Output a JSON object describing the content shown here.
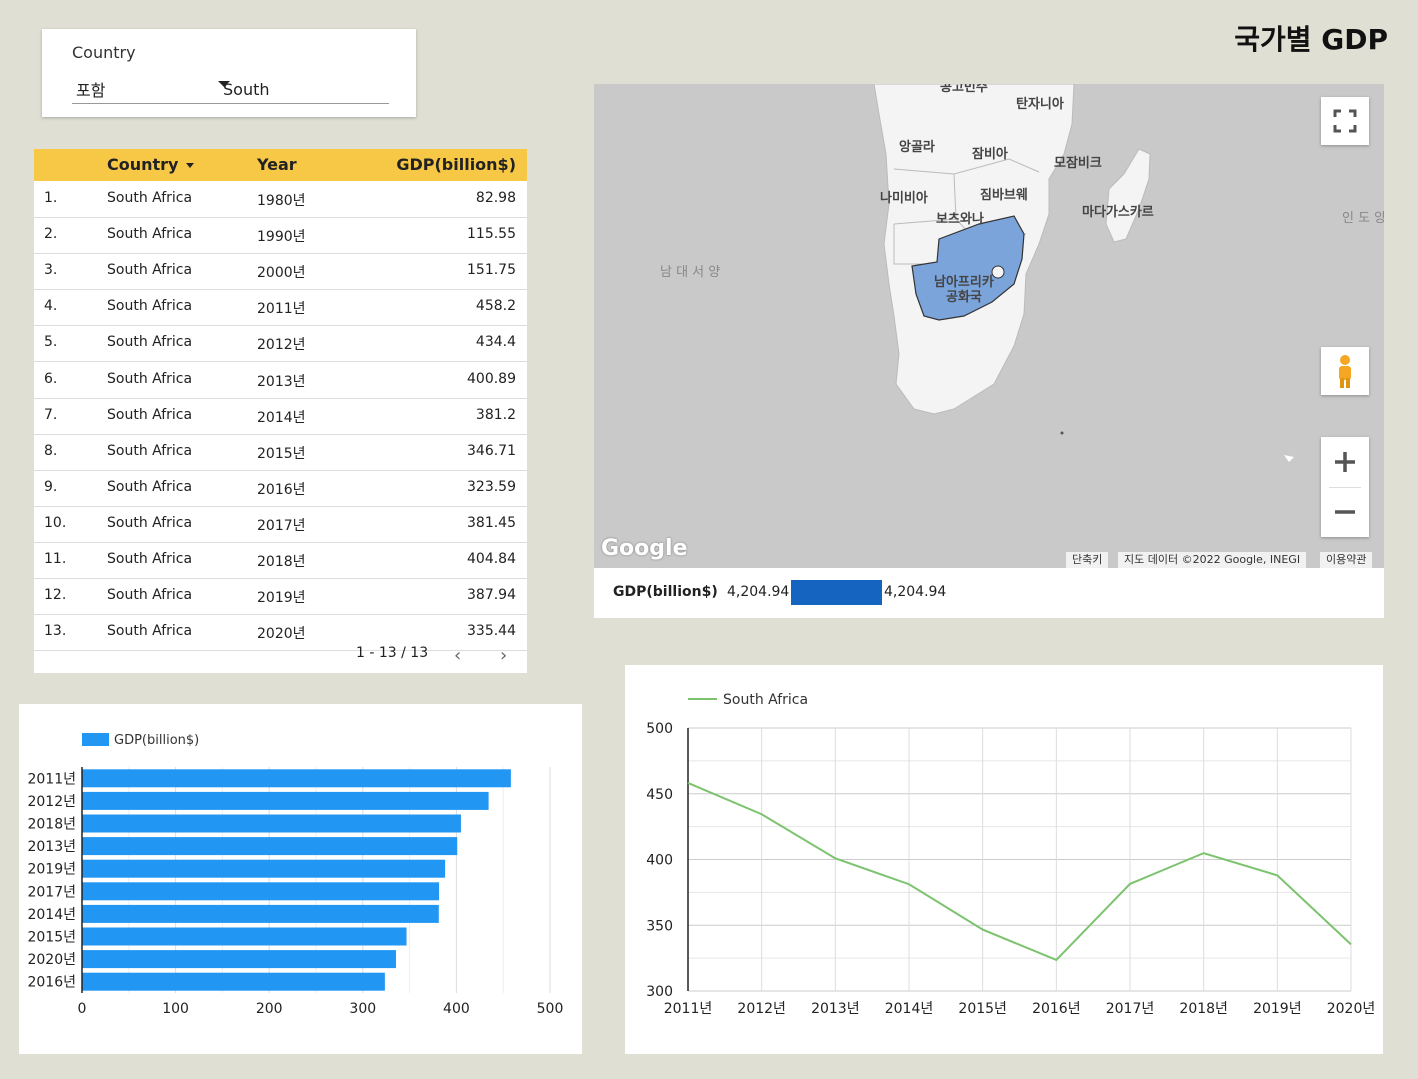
{
  "page": {
    "title": "국가별 GDP"
  },
  "filter": {
    "label": "Country",
    "mode": "포함",
    "value": "South"
  },
  "table": {
    "headers": {
      "country": "Country",
      "year": "Year",
      "gdp": "GDP(billion$)"
    },
    "rows": [
      {
        "idx": "1.",
        "country": "South Africa",
        "year": "1980년",
        "gdp": "82.98"
      },
      {
        "idx": "2.",
        "country": "South Africa",
        "year": "1990년",
        "gdp": "115.55"
      },
      {
        "idx": "3.",
        "country": "South Africa",
        "year": "2000년",
        "gdp": "151.75"
      },
      {
        "idx": "4.",
        "country": "South Africa",
        "year": "2011년",
        "gdp": "458.2"
      },
      {
        "idx": "5.",
        "country": "South Africa",
        "year": "2012년",
        "gdp": "434.4"
      },
      {
        "idx": "6.",
        "country": "South Africa",
        "year": "2013년",
        "gdp": "400.89"
      },
      {
        "idx": "7.",
        "country": "South Africa",
        "year": "2014년",
        "gdp": "381.2"
      },
      {
        "idx": "8.",
        "country": "South Africa",
        "year": "2015년",
        "gdp": "346.71"
      },
      {
        "idx": "9.",
        "country": "South Africa",
        "year": "2016년",
        "gdp": "323.59"
      },
      {
        "idx": "10.",
        "country": "South Africa",
        "year": "2017년",
        "gdp": "381.45"
      },
      {
        "idx": "11.",
        "country": "South Africa",
        "year": "2018년",
        "gdp": "404.84"
      },
      {
        "idx": "12.",
        "country": "South Africa",
        "year": "2019년",
        "gdp": "387.94"
      },
      {
        "idx": "13.",
        "country": "South Africa",
        "year": "2020년",
        "gdp": "335.44"
      }
    ],
    "pager": "1 - 13 / 13"
  },
  "map": {
    "labels": {
      "tanzania": "탄자니아",
      "angola": "앙골라",
      "zambia": "잠비아",
      "mozambique": "모잠비크",
      "namibia": "나미비아",
      "zimbabwe": "짐바브웨",
      "botswana": "보츠와나",
      "madagascar": "마다가스카르",
      "south_africa_1": "남아프리카",
      "south_africa_2": "공화국",
      "south_atlantic": "남 대 서 양",
      "indian_ocean": "인 도 양",
      "top_cut": "콩고민주"
    },
    "logo": "Google",
    "attribution": {
      "shortcuts": "단축키",
      "data": "지도 데이터 ©2022 Google, INEGI",
      "terms": "이용약관"
    },
    "legend": {
      "metric": "GDP(billion$)",
      "min": "4,204.94",
      "max": "4,204.94",
      "color": "#1565c0"
    },
    "highlight_color": "#7ba4db"
  },
  "chart_data": [
    {
      "type": "bar",
      "orientation": "horizontal",
      "categories": [
        "2011년",
        "2012년",
        "2018년",
        "2013년",
        "2019년",
        "2017년",
        "2014년",
        "2015년",
        "2020년",
        "2016년"
      ],
      "series": [
        {
          "name": "GDP(billion$)",
          "values": [
            458.2,
            434.4,
            404.84,
            400.89,
            387.94,
            381.45,
            381.2,
            346.71,
            335.44,
            323.59
          ],
          "color": "#2196f3"
        }
      ],
      "xlim": [
        0,
        500
      ],
      "ticks": [
        0,
        100,
        200,
        300,
        400,
        500
      ],
      "legend": "top-left"
    },
    {
      "type": "line",
      "x": [
        "2011년",
        "2012년",
        "2013년",
        "2014년",
        "2015년",
        "2016년",
        "2017년",
        "2018년",
        "2019년",
        "2020년"
      ],
      "series": [
        {
          "name": "South Africa",
          "values": [
            458.2,
            434.4,
            400.89,
            381.2,
            346.71,
            323.59,
            381.45,
            404.84,
            387.94,
            335.44
          ],
          "color": "#7cc36e"
        }
      ],
      "ylim": [
        300,
        500
      ],
      "ticks": [
        300,
        350,
        400,
        450,
        500
      ],
      "legend": "top-left"
    }
  ]
}
